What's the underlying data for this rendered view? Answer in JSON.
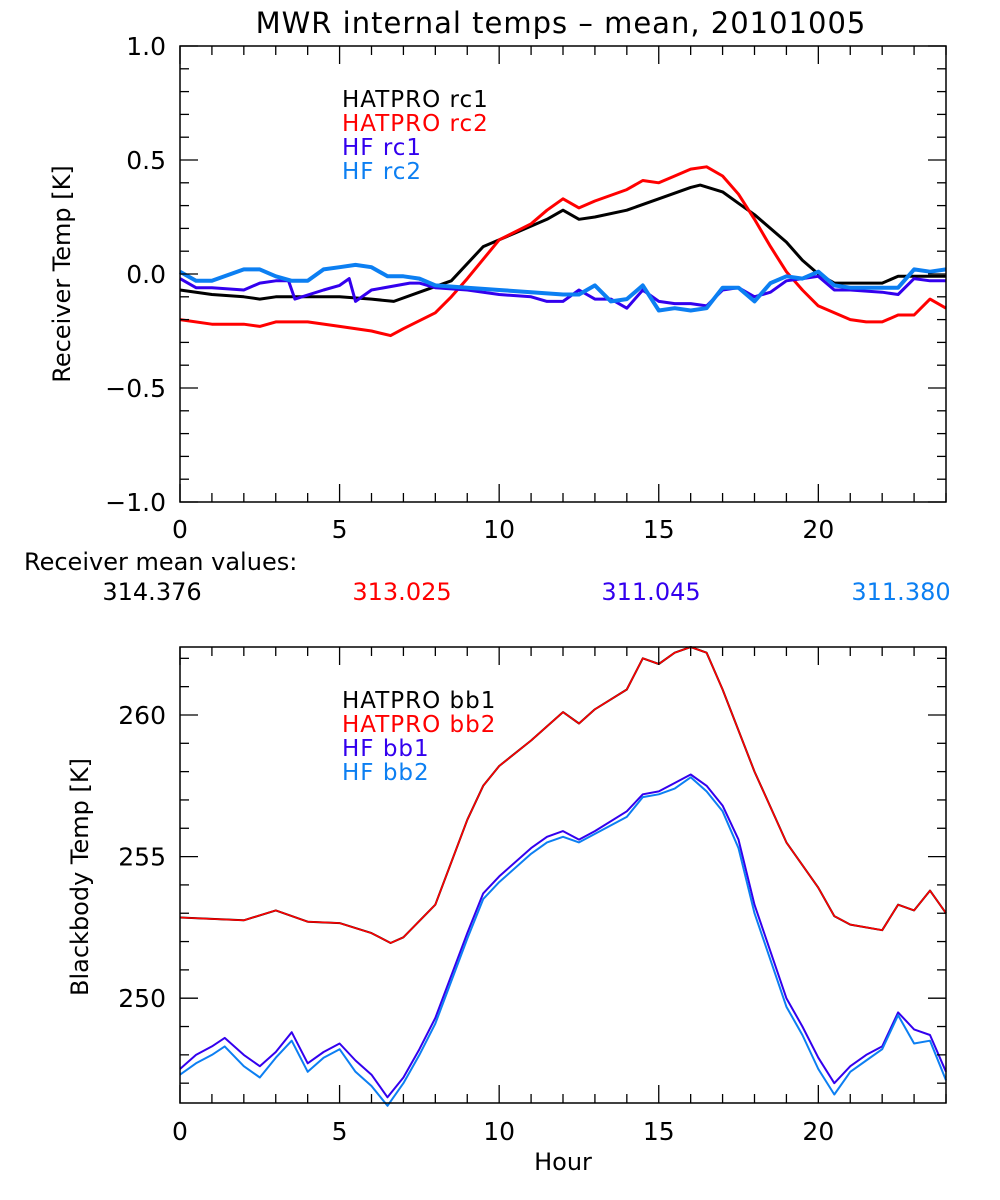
{
  "colors": {
    "hatpro_1": "#000000",
    "hatpro_2": "#ff0000",
    "hf_1": "#3300ee",
    "hf_2": "#0c7ff2",
    "axes": "#000000"
  },
  "chart_data": [
    {
      "type": "line",
      "title": "MWR internal temps – mean, 20101005",
      "xlabel": "",
      "ylabel": "Receiver Temp [K]",
      "xlim": [
        0,
        24
      ],
      "ylim": [
        -1.0,
        1.0
      ],
      "xticks": [
        0,
        5,
        10,
        15,
        20
      ],
      "xtick_labels": [
        "0",
        "5",
        "10",
        "15",
        "20"
      ],
      "x_minor_step": 1,
      "yticks": [
        -1.0,
        -0.5,
        0.0,
        0.5,
        1.0
      ],
      "ytick_labels": [
        "−1.0",
        "−0.5",
        "0.0",
        "0.5",
        "1.0"
      ],
      "y_minor_step": 0.1,
      "grid": false,
      "legend_position": "top-left-inside",
      "series": [
        {
          "name": "HATPRO rc1",
          "color_key": "hatpro_1",
          "x": [
            0,
            1,
            2,
            2.5,
            3,
            4,
            5,
            6,
            6.7,
            7.5,
            8.5,
            9.5,
            10.5,
            11.5,
            12,
            12.5,
            13,
            14,
            15,
            16,
            16.3,
            17,
            17.5,
            18,
            19,
            19.5,
            20,
            20.5,
            21,
            22,
            22.5,
            23,
            23.5,
            24
          ],
          "y": [
            -0.07,
            -0.09,
            -0.1,
            -0.11,
            -0.1,
            -0.1,
            -0.1,
            -0.11,
            -0.12,
            -0.08,
            -0.03,
            0.12,
            0.18,
            0.24,
            0.28,
            0.24,
            0.25,
            0.28,
            0.33,
            0.38,
            0.39,
            0.36,
            0.31,
            0.26,
            0.14,
            0.06,
            0.0,
            -0.04,
            -0.04,
            -0.04,
            -0.01,
            -0.01,
            -0.01,
            -0.01
          ]
        },
        {
          "name": "HATPRO rc2",
          "color_key": "hatpro_2",
          "x": [
            0,
            1,
            2,
            2.5,
            3,
            4,
            5,
            6,
            6.6,
            7,
            8,
            8.5,
            9,
            10,
            11,
            11.5,
            12,
            12.5,
            13,
            14,
            14.5,
            15,
            15.5,
            16,
            16.5,
            17,
            17.5,
            18,
            18.5,
            19,
            19.5,
            20,
            20.5,
            21,
            21.5,
            22,
            22.5,
            23,
            23.5,
            24
          ],
          "y": [
            -0.2,
            -0.22,
            -0.22,
            -0.23,
            -0.21,
            -0.21,
            -0.23,
            -0.25,
            -0.27,
            -0.24,
            -0.17,
            -0.1,
            -0.02,
            0.15,
            0.22,
            0.28,
            0.33,
            0.29,
            0.32,
            0.37,
            0.41,
            0.4,
            0.43,
            0.46,
            0.47,
            0.43,
            0.35,
            0.24,
            0.12,
            0.01,
            -0.07,
            -0.14,
            -0.17,
            -0.2,
            -0.21,
            -0.21,
            -0.18,
            -0.18,
            -0.11,
            -0.15
          ]
        },
        {
          "name": "HF rc1",
          "color_key": "hf_1",
          "x": [
            0,
            0.5,
            1,
            2,
            2.5,
            3,
            3.4,
            3.6,
            4.5,
            5,
            5.3,
            5.5,
            6,
            7.2,
            7.5,
            8,
            9,
            10,
            11,
            11.5,
            12,
            12.5,
            13,
            13.5,
            14,
            14.5,
            15,
            15.5,
            16,
            16.5,
            17,
            17.5,
            18,
            18.5,
            19,
            19.5,
            20,
            20.5,
            21,
            22,
            22.5,
            23,
            23.5,
            24
          ],
          "y": [
            -0.02,
            -0.06,
            -0.06,
            -0.07,
            -0.04,
            -0.03,
            -0.03,
            -0.11,
            -0.07,
            -0.05,
            -0.02,
            -0.12,
            -0.07,
            -0.04,
            -0.04,
            -0.06,
            -0.07,
            -0.09,
            -0.1,
            -0.12,
            -0.12,
            -0.07,
            -0.11,
            -0.11,
            -0.15,
            -0.07,
            -0.12,
            -0.13,
            -0.13,
            -0.14,
            -0.07,
            -0.06,
            -0.1,
            -0.08,
            -0.03,
            -0.02,
            -0.01,
            -0.07,
            -0.07,
            -0.08,
            -0.09,
            -0.02,
            -0.03,
            -0.03
          ]
        },
        {
          "name": "HF rc2",
          "color_key": "hf_2",
          "x": [
            0,
            0.5,
            1,
            2,
            2.5,
            3,
            3.5,
            4,
            4.5,
            5,
            5.5,
            6,
            6.5,
            7,
            7.5,
            8,
            9,
            10,
            11,
            12,
            12.5,
            13,
            13.5,
            14,
            14.5,
            15,
            15.5,
            16,
            16.5,
            17,
            17.5,
            18,
            18.5,
            19,
            19.5,
            20,
            20.5,
            21,
            22,
            22.5,
            23,
            23.5,
            24
          ],
          "y": [
            0.01,
            -0.03,
            -0.03,
            0.02,
            0.02,
            -0.01,
            -0.03,
            -0.03,
            0.02,
            0.03,
            0.04,
            0.03,
            -0.01,
            -0.01,
            -0.02,
            -0.05,
            -0.06,
            -0.07,
            -0.08,
            -0.09,
            -0.09,
            -0.05,
            -0.12,
            -0.11,
            -0.05,
            -0.16,
            -0.15,
            -0.16,
            -0.15,
            -0.06,
            -0.06,
            -0.12,
            -0.04,
            -0.01,
            -0.02,
            0.01,
            -0.05,
            -0.06,
            -0.06,
            -0.06,
            0.02,
            0.01,
            0.02
          ]
        }
      ]
    },
    {
      "type": "line",
      "title": "",
      "xlabel": "Hour",
      "ylabel": "Blackbody Temp [K]",
      "xlim": [
        0,
        24
      ],
      "ylim": [
        246.3,
        262.4
      ],
      "xticks": [
        0,
        5,
        10,
        15,
        20
      ],
      "xtick_labels": [
        "0",
        "5",
        "10",
        "15",
        "20"
      ],
      "x_minor_step": 1,
      "yticks": [
        250,
        255,
        260
      ],
      "ytick_labels": [
        "250",
        "255",
        "260"
      ],
      "y_minor_step": 1,
      "grid": false,
      "legend_position": "top-left-inside",
      "series": [
        {
          "name": "HATPRO bb1",
          "color_key": "hatpro_1",
          "x": [
            0,
            1,
            2,
            3,
            4,
            5,
            6,
            6.6,
            7,
            8,
            9,
            9.5,
            10,
            11,
            12,
            12.5,
            13,
            14,
            14.5,
            15,
            15.5,
            16,
            16.5,
            17,
            18,
            19,
            20,
            20.5,
            21,
            22,
            22.5,
            23,
            23.5,
            24
          ],
          "y": [
            252.85,
            252.8,
            252.75,
            253.1,
            252.7,
            252.65,
            252.3,
            251.95,
            252.15,
            253.3,
            256.3,
            257.5,
            258.2,
            259.1,
            260.1,
            259.7,
            260.2,
            260.9,
            262.0,
            261.8,
            262.2,
            262.4,
            262.2,
            260.9,
            258.0,
            255.5,
            253.9,
            252.9,
            252.6,
            252.4,
            253.3,
            253.1,
            253.8,
            253.0
          ]
        },
        {
          "name": "HATPRO bb2",
          "color_key": "hatpro_2",
          "x": [
            0,
            1,
            2,
            3,
            4,
            5,
            6,
            6.6,
            7,
            8,
            9,
            9.5,
            10,
            11,
            12,
            12.5,
            13,
            14,
            14.5,
            15,
            15.5,
            16,
            16.5,
            17,
            18,
            19,
            20,
            20.5,
            21,
            22,
            22.5,
            23,
            23.5,
            24
          ],
          "y": [
            252.85,
            252.8,
            252.75,
            253.1,
            252.7,
            252.65,
            252.3,
            251.95,
            252.15,
            253.3,
            256.3,
            257.5,
            258.2,
            259.1,
            260.1,
            259.7,
            260.2,
            260.9,
            262.0,
            261.8,
            262.2,
            262.4,
            262.2,
            260.9,
            258.0,
            255.5,
            253.9,
            252.9,
            252.6,
            252.4,
            253.3,
            253.1,
            253.8,
            253.0
          ]
        },
        {
          "name": "HF bb1",
          "color_key": "hf_1",
          "x": [
            0,
            0.5,
            1,
            1.4,
            2,
            2.5,
            3,
            3.5,
            4,
            4.5,
            5,
            5.5,
            6,
            6.5,
            7,
            7.5,
            8,
            9,
            9.5,
            10,
            11,
            11.5,
            12,
            12.5,
            13,
            14,
            14.5,
            15,
            15.5,
            16,
            16.5,
            17,
            17.5,
            18,
            19,
            19.5,
            20,
            20.5,
            21,
            21.5,
            22,
            22.5,
            23,
            23.5,
            24
          ],
          "y": [
            247.5,
            248.0,
            248.3,
            248.6,
            248.0,
            247.6,
            248.1,
            248.8,
            247.7,
            248.1,
            248.4,
            247.8,
            247.3,
            246.5,
            247.2,
            248.2,
            249.3,
            252.3,
            253.7,
            254.3,
            255.3,
            255.7,
            255.9,
            255.6,
            255.9,
            256.6,
            257.2,
            257.3,
            257.6,
            257.9,
            257.5,
            256.8,
            255.6,
            253.3,
            250.0,
            249.0,
            247.9,
            247.0,
            247.6,
            248.0,
            248.3,
            249.5,
            248.9,
            248.7,
            247.4
          ]
        },
        {
          "name": "HF bb2",
          "color_key": "hf_2",
          "x": [
            0,
            0.5,
            1,
            1.4,
            2,
            2.5,
            3,
            3.5,
            4,
            4.5,
            5,
            5.5,
            6,
            6.5,
            7,
            7.5,
            8,
            9,
            9.5,
            10,
            11,
            11.5,
            12,
            12.5,
            13,
            14,
            14.5,
            15,
            15.5,
            16,
            16.5,
            17,
            17.5,
            18,
            19,
            19.5,
            20,
            20.5,
            21,
            21.5,
            22,
            22.5,
            23,
            23.5,
            24
          ],
          "y": [
            247.3,
            247.7,
            248.0,
            248.3,
            247.6,
            247.2,
            247.9,
            248.5,
            247.4,
            247.9,
            248.2,
            247.4,
            246.9,
            246.2,
            247.0,
            248.0,
            249.1,
            252.1,
            253.5,
            254.1,
            255.1,
            255.5,
            255.7,
            255.5,
            255.8,
            256.4,
            257.1,
            257.2,
            257.4,
            257.8,
            257.3,
            256.6,
            255.3,
            253.0,
            249.7,
            248.7,
            247.5,
            246.6,
            247.4,
            247.8,
            248.2,
            249.4,
            248.4,
            248.5,
            247.1
          ]
        }
      ]
    }
  ],
  "title": "MWR internal temps – mean, 20101005",
  "top_plot": {
    "ylabel": "Receiver Temp [K]",
    "legend": [
      "HATPRO rc1",
      "HATPRO rc2",
      "HF rc1",
      "HF rc2"
    ]
  },
  "means": {
    "label": "Receiver mean values:",
    "values": [
      "314.376",
      "313.025",
      "311.045",
      "311.380"
    ]
  },
  "bottom_plot": {
    "ylabel": "Blackbody Temp [K]",
    "xlabel": "Hour",
    "legend": [
      "HATPRO bb1",
      "HATPRO bb2",
      "HF bb1",
      "HF bb2"
    ]
  }
}
